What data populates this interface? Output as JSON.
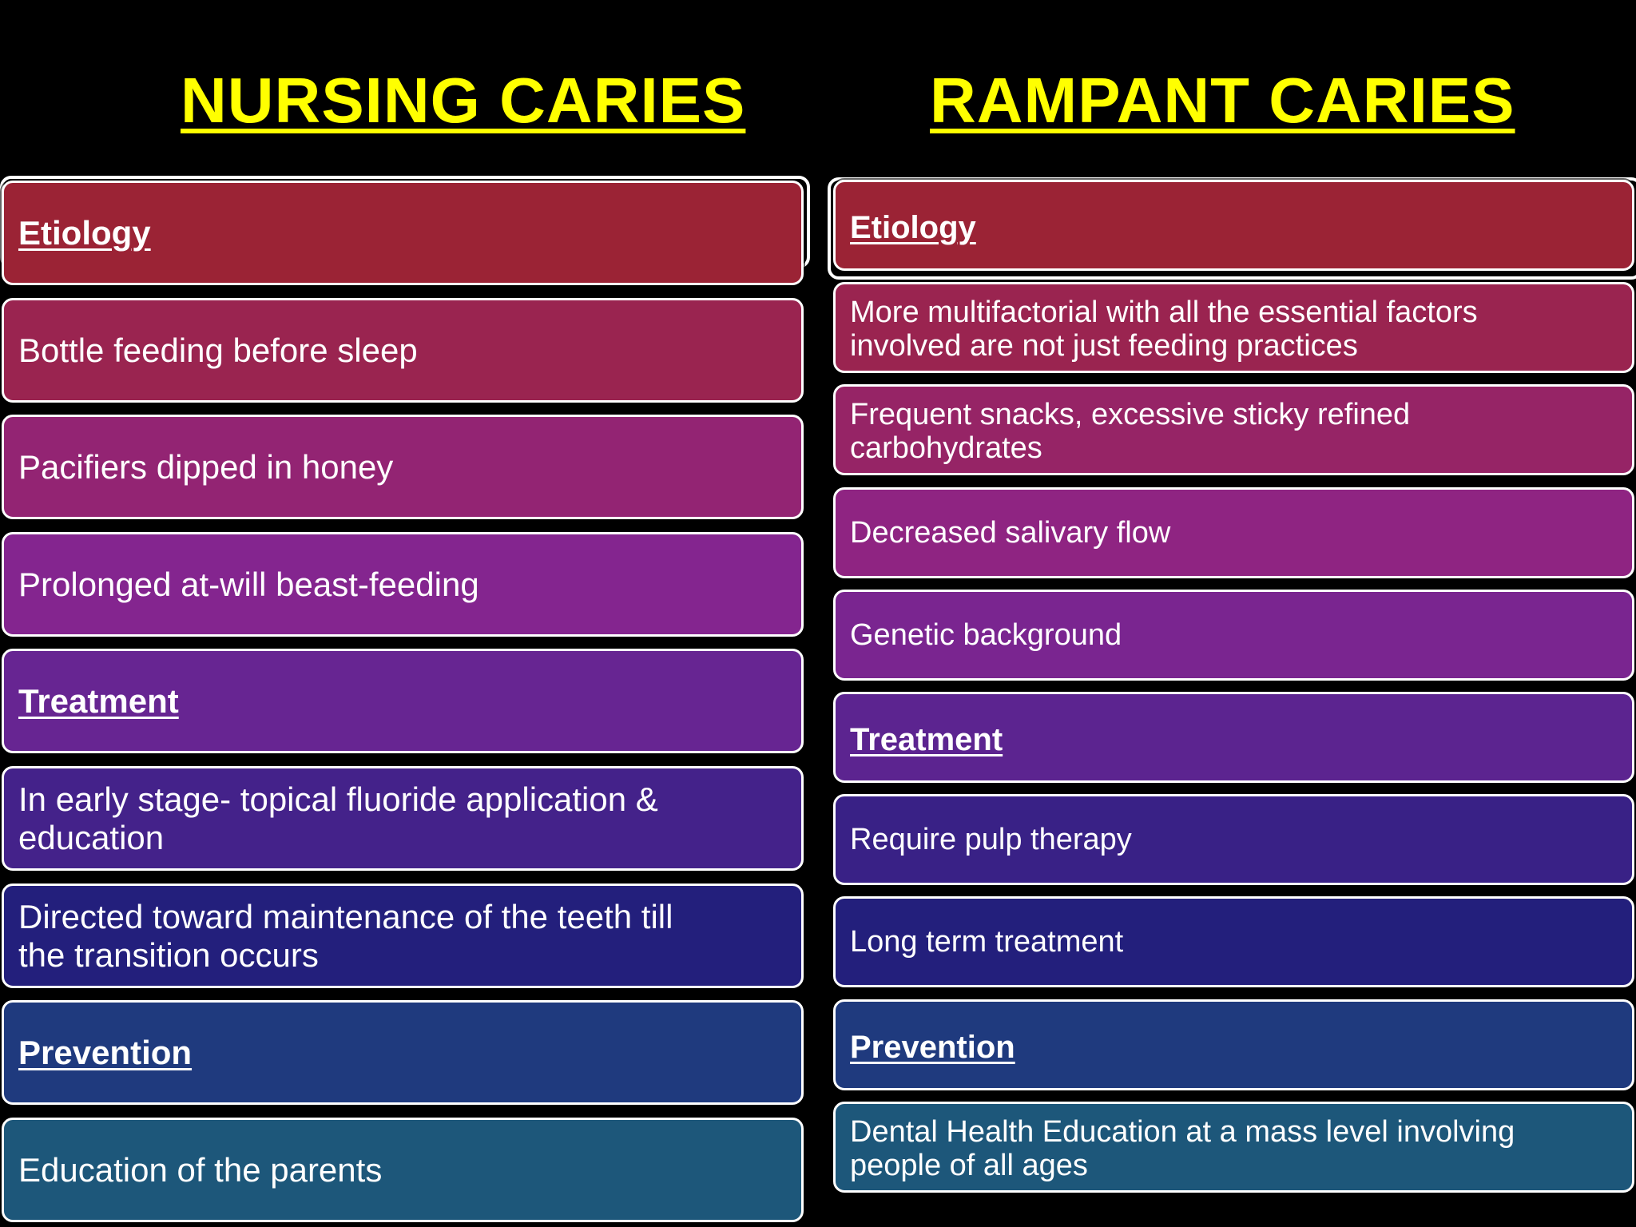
{
  "left": {
    "title": "NURSING CARIES",
    "rows": [
      {
        "text": "Etiology",
        "header": true,
        "color": "#9b2335"
      },
      {
        "text": "Bottle feeding before sleep",
        "header": false,
        "color": "#9a2450"
      },
      {
        "text": "Pacifiers dipped in honey",
        "header": false,
        "color": "#932473"
      },
      {
        "text": "Prolonged at-will beast-feeding",
        "header": false,
        "color": "#84258f"
      },
      {
        "text": "Treatment",
        "header": true,
        "color": "#672592"
      },
      {
        "text": "In early stage- topical fluoride application &\neducation",
        "header": false,
        "color": "#44228a"
      },
      {
        "text": "Directed toward maintenance  of the teeth till\nthe transition occurs",
        "header": false,
        "color": "#231f7c"
      },
      {
        "text": "Prevention",
        "header": true,
        "color": "#1f3a7e"
      },
      {
        "text": "Education of the parents",
        "header": false,
        "color": "#1d577a"
      }
    ]
  },
  "right": {
    "title": "RAMPANT CARIES",
    "rows": [
      {
        "text": "Etiology",
        "header": true,
        "color": "#9b2335"
      },
      {
        "text": "More multifactorial with all the essential factors\ninvolved are not just feeding practices",
        "header": false,
        "color": "#9a2450"
      },
      {
        "text": "Frequent snacks, excessive sticky refined\ncarbohydrates",
        "header": false,
        "color": "#962466"
      },
      {
        "text": "Decreased salivary flow",
        "header": false,
        "color": "#8f2482"
      },
      {
        "text": "Genetic background",
        "header": false,
        "color": "#7a2590"
      },
      {
        "text": "Treatment",
        "header": true,
        "color": "#5c2490"
      },
      {
        "text": "Require pulp therapy",
        "header": false,
        "color": "#392186"
      },
      {
        "text": "Long term treatment",
        "header": false,
        "color": "#231f7c"
      },
      {
        "text": "Prevention",
        "header": true,
        "color": "#1f3a7e"
      },
      {
        "text": "Dental Health Education at a mass level involving\npeople of all ages",
        "header": false,
        "color": "#1d577a"
      }
    ]
  }
}
